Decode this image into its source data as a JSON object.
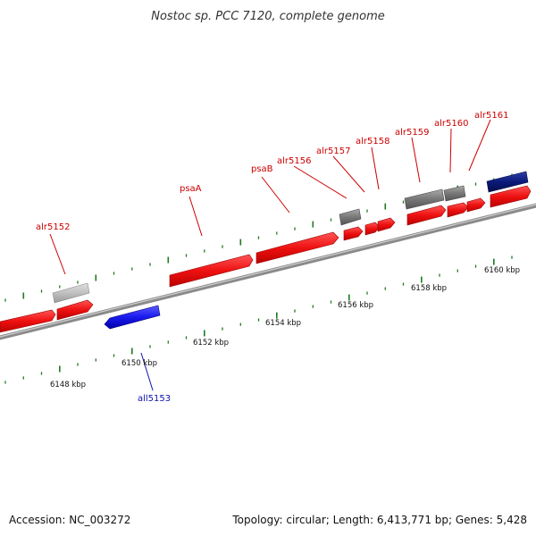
{
  "title": "Nostoc sp. PCC 7120, complete genome",
  "footer": {
    "accession": "Accession: NC_003272",
    "topology": "Topology: circular; Length: 6,413,771 bp; Genes: 5,428"
  },
  "colors": {
    "forward_gene": "#ee1111",
    "reverse_gene": "#1a1aee",
    "other_gene_gray": "#777777",
    "light_gray_gene": "#bbbbbb",
    "navy_gene": "#0b1a7a",
    "backbone": "#8a8a8a",
    "tick": "#1f7a1f",
    "forward_label": "#cc0000",
    "reverse_label": "#1010aa"
  },
  "scale_labels": [
    "6148 kbp",
    "6150 kbp",
    "6152 kbp",
    "6154 kbp",
    "6156 kbp",
    "6158 kbp",
    "6160 kbp"
  ],
  "labels": {
    "alr5152": "alr5152",
    "psaA": "psaA",
    "psaB": "psaB",
    "alr5156": "alr5156",
    "alr5157": "alr5157",
    "alr5158": "alr5158",
    "alr5159": "alr5159",
    "alr5160": "alr5160",
    "alr5161": "alr5161",
    "all5153": "all5153"
  }
}
